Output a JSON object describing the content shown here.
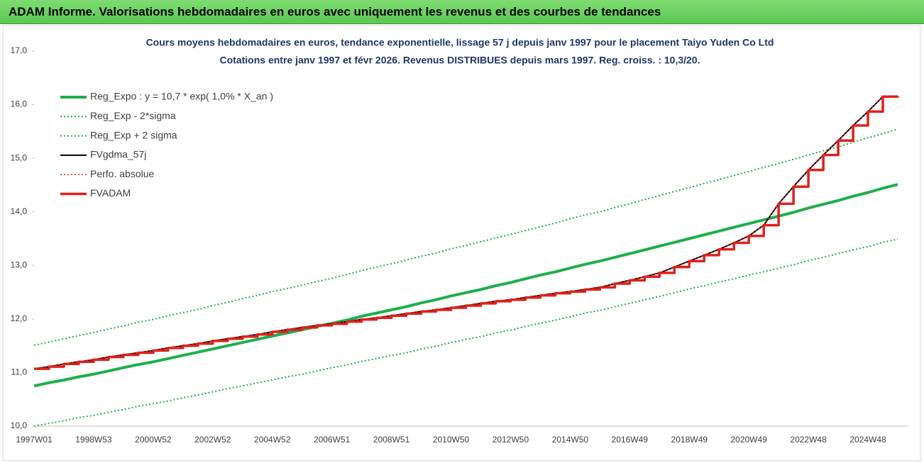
{
  "banner_title": "ADAM Informe. Valorisations hebdomadaires en euros avec uniquement les revenus et des courbes de tendances",
  "chart_data": {
    "type": "line",
    "title": "Cours moyens hebdomadaires en euros, tendance exponentielle, lissage 57 j depuis janv 1997 pour le placement Taiyo Yuden Co Ltd",
    "subtitle": "Cotations entre janv 1997 et févr 2026. Revenus DISTRIBUES depuis mars 1997. Reg. croiss. : 10,3/20.",
    "categories": [
      "1997W01",
      null,
      null,
      null,
      "1998W53",
      null,
      null,
      null,
      "2000W52",
      null,
      null,
      null,
      "2002W52",
      null,
      null,
      null,
      "2004W52",
      null,
      null,
      null,
      "2006W51",
      null,
      null,
      null,
      "2008W51",
      null,
      null,
      null,
      "2010W50",
      null,
      null,
      null,
      "2012W50",
      null,
      null,
      null,
      "2014W50",
      null,
      null,
      null,
      "2016W49",
      null,
      null,
      null,
      "2018W49",
      null,
      null,
      null,
      "2020W49",
      null,
      null,
      null,
      "2022W48",
      null,
      null,
      null,
      "2024W48",
      null,
      null
    ],
    "ylim": [
      10,
      17
    ],
    "yticks": [
      {
        "value": 10,
        "label": "10,0"
      },
      {
        "value": 11,
        "label": "11,0"
      },
      {
        "value": 12,
        "label": "12,0"
      },
      {
        "value": 13,
        "label": "13,0"
      },
      {
        "value": 14,
        "label": "14,0"
      },
      {
        "value": 15,
        "label": "15,0"
      },
      {
        "value": 16,
        "label": "16,0"
      },
      {
        "value": 17,
        "label": "17,0"
      }
    ],
    "legend": "top-left",
    "series": [
      {
        "name": "Reg_Expo : y = 10,7 * exp( 1,0% *  X_an )",
        "color": "#1fae4e",
        "width": 4,
        "dash": "solid",
        "values": [
          10.75,
          10.81,
          10.86,
          10.92,
          10.97,
          11.03,
          11.09,
          11.15,
          11.2,
          11.26,
          11.32,
          11.38,
          11.44,
          11.5,
          11.56,
          11.62,
          11.68,
          11.74,
          11.8,
          11.86,
          11.92,
          11.98,
          12.05,
          12.11,
          12.17,
          12.23,
          12.3,
          12.36,
          12.43,
          12.49,
          12.55,
          12.62,
          12.68,
          12.75,
          12.82,
          12.88,
          12.95,
          13.02,
          13.08,
          13.15,
          13.22,
          13.29,
          13.36,
          13.43,
          13.5,
          13.57,
          13.64,
          13.71,
          13.78,
          13.85,
          13.92,
          13.99,
          14.07,
          14.14,
          14.21,
          14.29,
          14.36,
          14.44,
          14.51
        ]
      },
      {
        "name": "Reg_Exp - 2*sigma",
        "color": "#1fae4e",
        "width": 2,
        "dash": "dotted",
        "values": [
          10.0,
          10.05,
          10.1,
          10.16,
          10.2,
          10.26,
          10.31,
          10.37,
          10.42,
          10.47,
          10.53,
          10.58,
          10.64,
          10.7,
          10.75,
          10.81,
          10.86,
          10.92,
          10.97,
          11.03,
          11.09,
          11.14,
          11.21,
          11.26,
          11.32,
          11.37,
          11.44,
          11.49,
          11.56,
          11.62,
          11.67,
          11.74,
          11.79,
          11.86,
          11.92,
          11.98,
          12.04,
          12.11,
          12.16,
          12.23,
          12.29,
          12.36,
          12.42,
          12.49,
          12.56,
          12.62,
          12.69,
          12.75,
          12.82,
          12.88,
          12.95,
          13.01,
          13.09,
          13.15,
          13.22,
          13.29,
          13.35,
          13.43,
          13.49
        ]
      },
      {
        "name": "Reg_Exp + 2 sigma",
        "color": "#1fae4e",
        "width": 2,
        "dash": "dotted",
        "values": [
          11.51,
          11.57,
          11.63,
          11.69,
          11.75,
          11.81,
          11.87,
          11.94,
          11.99,
          12.06,
          12.12,
          12.18,
          12.25,
          12.31,
          12.38,
          12.44,
          12.51,
          12.57,
          12.63,
          12.7,
          12.76,
          12.83,
          12.9,
          12.97,
          13.03,
          13.1,
          13.17,
          13.23,
          13.31,
          13.37,
          13.44,
          13.51,
          13.58,
          13.65,
          13.72,
          13.79,
          13.87,
          13.94,
          14.0,
          14.08,
          14.15,
          14.23,
          14.3,
          14.38,
          14.45,
          14.53,
          14.6,
          14.68,
          14.75,
          14.83,
          14.9,
          14.98,
          15.06,
          15.14,
          15.21,
          15.3,
          15.38,
          15.46,
          15.54
        ]
      },
      {
        "name": "FVgdma_57j",
        "color": "#000000",
        "width": 2,
        "dash": "solid",
        "values": [
          11.07,
          11.11,
          11.16,
          11.2,
          11.24,
          11.29,
          11.33,
          11.37,
          11.41,
          11.46,
          11.5,
          11.54,
          11.59,
          11.63,
          11.67,
          11.71,
          11.76,
          11.8,
          11.84,
          11.88,
          11.91,
          11.95,
          11.99,
          12.02,
          12.06,
          12.1,
          12.14,
          12.17,
          12.21,
          12.25,
          12.29,
          12.33,
          12.36,
          12.4,
          12.44,
          12.48,
          12.51,
          12.55,
          12.59,
          12.66,
          12.72,
          12.79,
          12.86,
          12.97,
          13.08,
          13.19,
          13.3,
          13.42,
          13.55,
          13.75,
          14.15,
          14.47,
          14.78,
          15.06,
          15.33,
          15.61,
          15.87,
          16.15,
          16.16
        ]
      },
      {
        "name": "Perfo. absolue",
        "color": "#e0201b",
        "width": 1.5,
        "dash": "dotted",
        "values": [
          11.07,
          11.11,
          11.16,
          11.2,
          11.24,
          11.29,
          11.33,
          11.37,
          11.41,
          11.46,
          11.5,
          11.54,
          11.59,
          11.63,
          11.67,
          11.71,
          11.76,
          11.8,
          11.84,
          11.88,
          11.91,
          11.95,
          11.99,
          12.02,
          12.06,
          12.1,
          12.14,
          12.17,
          12.21,
          12.25,
          12.29,
          12.33,
          12.36,
          12.4,
          12.44,
          12.48,
          12.51,
          12.55,
          12.59,
          12.66,
          12.72,
          12.79,
          12.86,
          12.97,
          13.08,
          13.19,
          13.3,
          13.42,
          13.55,
          13.75,
          14.15,
          14.47,
          14.78,
          15.06,
          15.33,
          15.61,
          15.87,
          16.15,
          16.16
        ]
      },
      {
        "name": "FVADAM",
        "color": "#e0201b",
        "width": 3.5,
        "dash": "solid",
        "step": true,
        "values": [
          11.07,
          11.11,
          11.16,
          11.2,
          11.24,
          11.29,
          11.33,
          11.37,
          11.41,
          11.46,
          11.5,
          11.54,
          11.59,
          11.63,
          11.67,
          11.71,
          11.76,
          11.8,
          11.84,
          11.88,
          11.91,
          11.95,
          11.99,
          12.02,
          12.06,
          12.1,
          12.14,
          12.17,
          12.21,
          12.25,
          12.29,
          12.33,
          12.36,
          12.4,
          12.44,
          12.48,
          12.51,
          12.55,
          12.59,
          12.66,
          12.72,
          12.79,
          12.86,
          12.97,
          13.08,
          13.19,
          13.3,
          13.42,
          13.55,
          13.75,
          14.15,
          14.47,
          14.78,
          15.06,
          15.33,
          15.61,
          15.87,
          16.15,
          16.16
        ]
      }
    ]
  }
}
